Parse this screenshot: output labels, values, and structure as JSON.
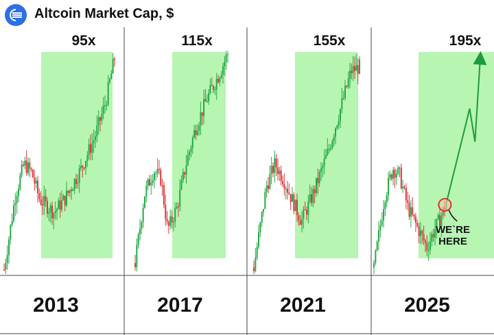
{
  "header": {
    "title": "Altcoin Market Cap, $",
    "logo_icon": "altcoin-logo-icon"
  },
  "colors": {
    "up": "#22a845",
    "down": "#e0343c",
    "highlight": "#b7f5b3",
    "divider": "#444444",
    "arrow": "#1c9b3a",
    "logo": "#2f6fe4"
  },
  "chart_data": {
    "type": "candlestick",
    "yscale": "relative",
    "panels": [
      {
        "year": "2013",
        "multiplier": "95x",
        "trend": [
          [
            0,
            2
          ],
          [
            0.1,
            35
          ],
          [
            0.18,
            50
          ],
          [
            0.25,
            46
          ],
          [
            0.32,
            34
          ],
          [
            0.45,
            28
          ],
          [
            0.55,
            34
          ],
          [
            0.7,
            48
          ],
          [
            0.82,
            62
          ],
          [
            0.92,
            78
          ],
          [
            1,
            98
          ]
        ]
      },
      {
        "year": "2017",
        "multiplier": "115x",
        "trend": [
          [
            0,
            5
          ],
          [
            0.1,
            36
          ],
          [
            0.2,
            47
          ],
          [
            0.28,
            43
          ],
          [
            0.35,
            20
          ],
          [
            0.45,
            30
          ],
          [
            0.55,
            50
          ],
          [
            0.65,
            66
          ],
          [
            0.78,
            80
          ],
          [
            0.9,
            90
          ],
          [
            1,
            100
          ]
        ]
      },
      {
        "year": "2021",
        "multiplier": "155x",
        "trend": [
          [
            0,
            3
          ],
          [
            0.12,
            40
          ],
          [
            0.2,
            50
          ],
          [
            0.28,
            43
          ],
          [
            0.36,
            34
          ],
          [
            0.45,
            24
          ],
          [
            0.55,
            35
          ],
          [
            0.7,
            55
          ],
          [
            0.82,
            75
          ],
          [
            0.92,
            92
          ],
          [
            1,
            94
          ]
        ]
      },
      {
        "year": "2025",
        "multiplier": "195x",
        "trend": [
          [
            0,
            3
          ],
          [
            0.1,
            35
          ],
          [
            0.18,
            48
          ],
          [
            0.24,
            45
          ],
          [
            0.32,
            30
          ],
          [
            0.4,
            22
          ],
          [
            0.47,
            15
          ],
          [
            0.5,
            12
          ],
          [
            0.55,
            18
          ],
          [
            0.62,
            25
          ],
          [
            0.68,
            32
          ]
        ],
        "note": "WE`RE HERE",
        "projection": [
          [
            0.68,
            32
          ],
          [
            0.9,
            75
          ],
          [
            0.95,
            60
          ],
          [
            1,
            98
          ]
        ]
      }
    ]
  }
}
